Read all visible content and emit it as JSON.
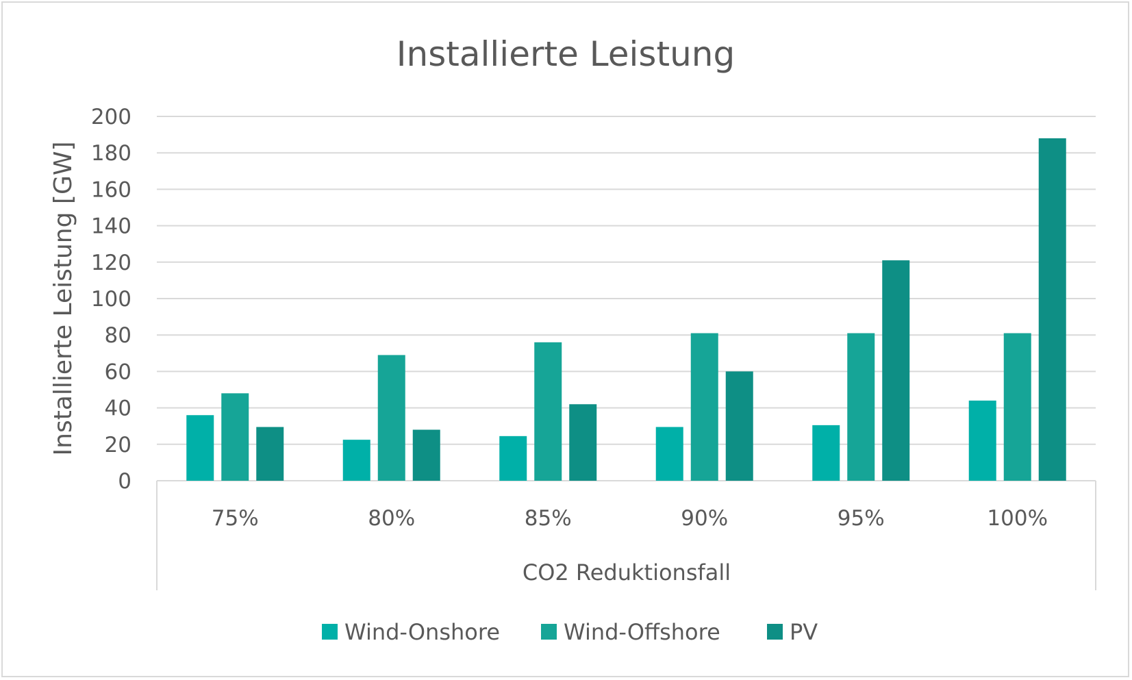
{
  "chart_data": {
    "type": "bar",
    "title": "Installierte Leistung",
    "xlabel": "CO2 Reduktionsfall",
    "ylabel": "Installierte Leistung  [GW]",
    "categories": [
      "75%",
      "80%",
      "85%",
      "90%",
      "95%",
      "100%"
    ],
    "series": [
      {
        "name": "Wind-Onshore",
        "color": "#00b0a8",
        "values": [
          36,
          22.5,
          24.5,
          29.5,
          30.5,
          44
        ]
      },
      {
        "name": "Wind-Offshore",
        "color": "#16a597",
        "values": [
          48,
          69,
          76,
          81,
          81,
          81
        ]
      },
      {
        "name": "PV",
        "color": "#0e8f85",
        "values": [
          29.5,
          28,
          42,
          60,
          121,
          188
        ]
      }
    ],
    "ylim": [
      0,
      200
    ],
    "yticks": [
      0,
      20,
      40,
      60,
      80,
      100,
      120,
      140,
      160,
      180,
      200
    ],
    "grid": true,
    "legend_position": "bottom"
  }
}
